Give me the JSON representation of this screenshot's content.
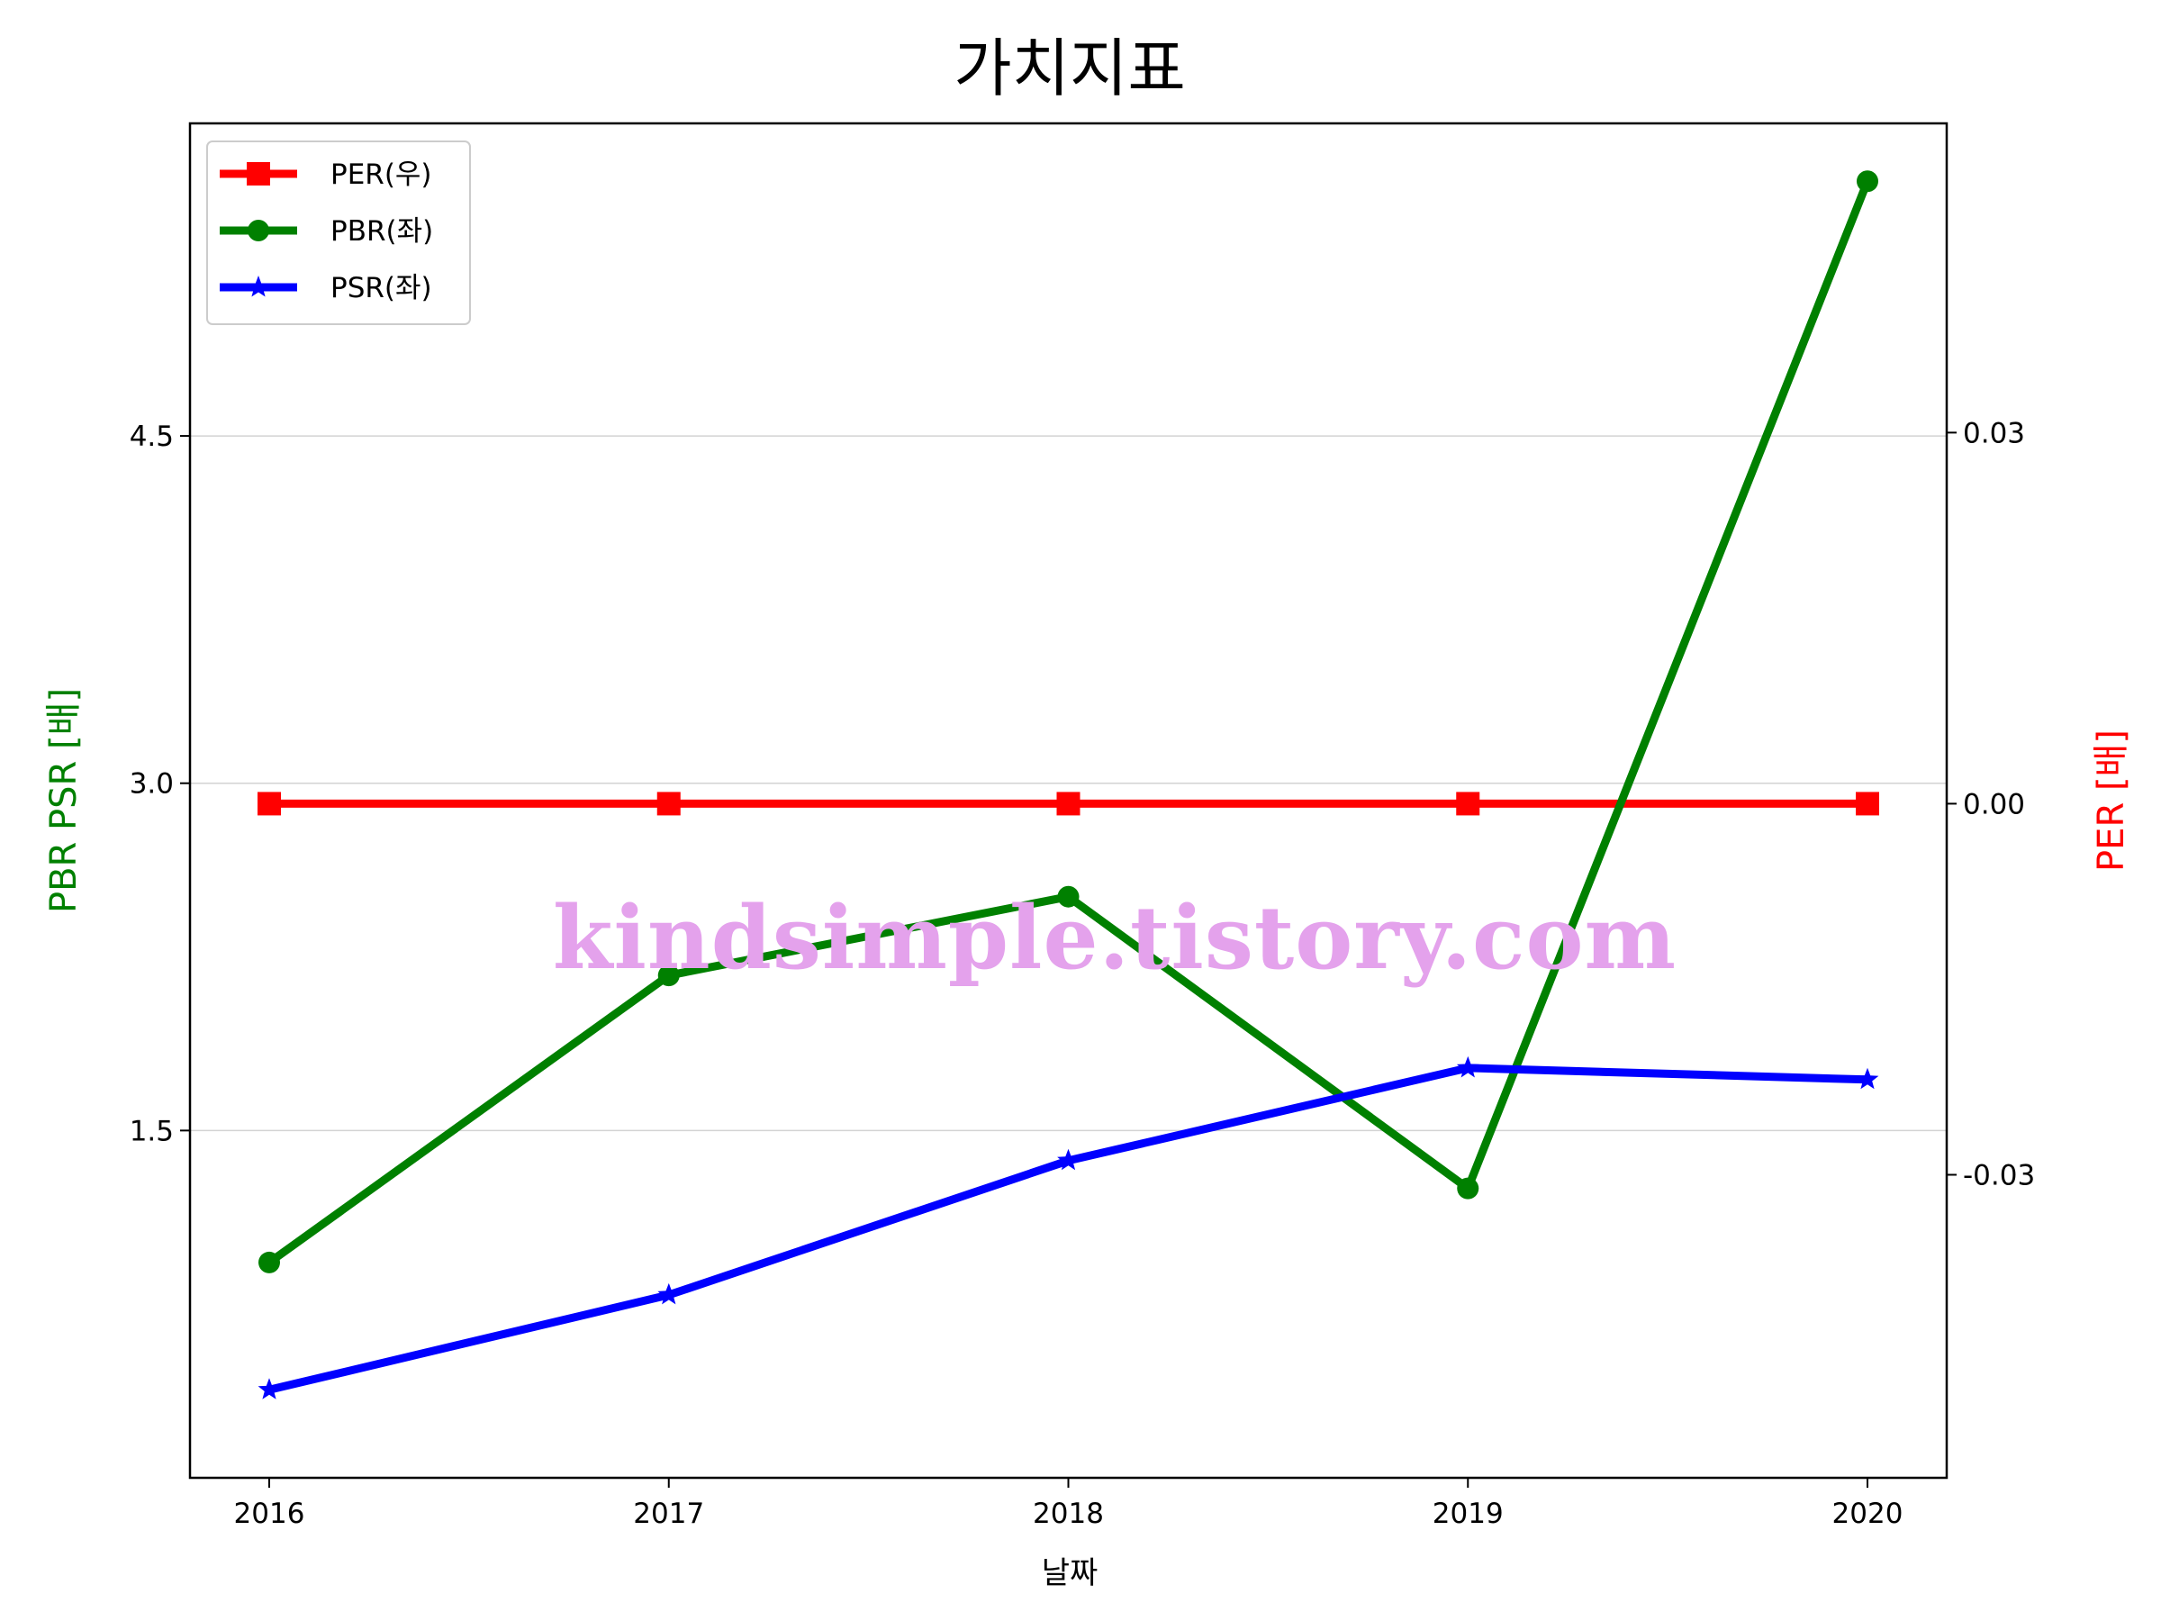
{
  "chart_data": {
    "type": "line",
    "title": "가치지표",
    "xlabel": "날짜",
    "ylabel_left": "PBR PSR [배]",
    "ylabel_right": "PER [배]",
    "categories": [
      "2016",
      "2017",
      "2018",
      "2019",
      "2020"
    ],
    "left_axis": {
      "ylim": [
        0.0,
        5.85
      ],
      "ticks": [
        1.5,
        3.0,
        4.5
      ],
      "tick_labels": [
        "1.5",
        "3.0",
        "4.5"
      ]
    },
    "right_axis": {
      "ylim": [
        -0.0545,
        0.055
      ],
      "ticks": [
        -0.03,
        0.0,
        0.03
      ],
      "tick_labels": [
        "-0.03",
        "0.00",
        "0.03"
      ]
    },
    "grid": true,
    "legend_position": "upper-left",
    "series": [
      {
        "name": "PER(우)",
        "axis": "right",
        "marker": "square",
        "color": "#ff0000",
        "values": [
          0.0,
          0.0,
          0.0,
          0.0,
          0.0
        ]
      },
      {
        "name": "PBR(좌)",
        "axis": "left",
        "marker": "circle",
        "color": "#008000",
        "values": [
          0.93,
          2.17,
          2.51,
          1.25,
          5.6
        ]
      },
      {
        "name": "PSR(좌)",
        "axis": "left",
        "marker": "star",
        "color": "#0000ff",
        "values": [
          0.38,
          0.79,
          1.37,
          1.77,
          1.72
        ]
      }
    ],
    "watermark": {
      "text": "kindsimple.tistory.com",
      "color": "#e4a2ec"
    }
  }
}
